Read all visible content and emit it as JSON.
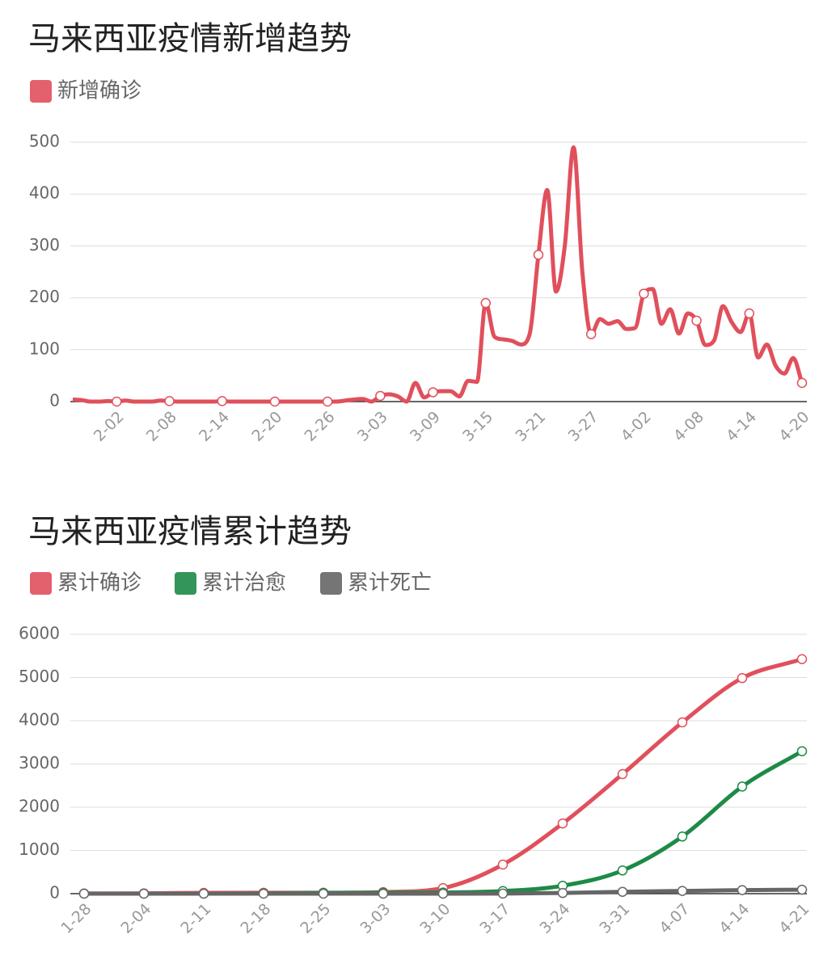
{
  "chart_data": [
    {
      "type": "line",
      "title": "马来西亚疫情新增趋势",
      "categories": [
        null,
        null,
        null,
        null,
        null,
        "2-02",
        null,
        null,
        null,
        null,
        null,
        "2-08",
        null,
        null,
        null,
        null,
        null,
        "2-14",
        null,
        null,
        null,
        null,
        null,
        "2-20",
        null,
        null,
        null,
        null,
        null,
        "2-26",
        null,
        null,
        null,
        null,
        null,
        "3-03",
        null,
        null,
        null,
        null,
        null,
        "3-09",
        null,
        null,
        null,
        null,
        null,
        "3-15",
        null,
        null,
        null,
        null,
        null,
        "3-21",
        null,
        null,
        null,
        null,
        null,
        "3-27",
        null,
        null,
        null,
        null,
        null,
        "4-02",
        null,
        null,
        null,
        null,
        null,
        "4-08",
        null,
        null,
        null,
        null,
        null,
        "4-14",
        null,
        null,
        null,
        null,
        null,
        "4-20"
      ],
      "series": [
        {
          "name": "新增确诊",
          "color": "#e0505c",
          "values": [
            4,
            3,
            0,
            0,
            1,
            0,
            2,
            0,
            0,
            0,
            2,
            1,
            0,
            0,
            0,
            0,
            0,
            1,
            0,
            0,
            0,
            0,
            0,
            0,
            0,
            0,
            0,
            0,
            0,
            0,
            0,
            2,
            4,
            5,
            0,
            11,
            14,
            10,
            0,
            36,
            8,
            18,
            20,
            20,
            10,
            40,
            38,
            190,
            125,
            120,
            117,
            110,
            130,
            283,
            408,
            212,
            300,
            490,
            250,
            130,
            159,
            150,
            155,
            140,
            142,
            208,
            217,
            150,
            178,
            131,
            170,
            156,
            109,
            118,
            184,
            153,
            134,
            170,
            85,
            110,
            69,
            54,
            84,
            36
          ]
        }
      ],
      "ylim": [
        0,
        500
      ],
      "yticks": [
        0,
        100,
        200,
        300,
        400,
        500
      ],
      "grid": true
    },
    {
      "type": "line",
      "title": "马来西亚疫情累计趋势",
      "categories": [
        "1-28",
        "2-04",
        "2-11",
        "2-18",
        "2-25",
        "3-03",
        "3-10",
        "3-17",
        "3-24",
        "3-31",
        "4-07",
        "4-14",
        "4-21"
      ],
      "series": [
        {
          "name": "累计确诊",
          "color": "#e0505c",
          "values": [
            4,
            8,
            18,
            22,
            22,
            36,
            129,
            673,
            1624,
            2766,
            3963,
            4987,
            5425
          ]
        },
        {
          "name": "累计治愈",
          "color": "#1e8a47",
          "values": [
            0,
            0,
            1,
            7,
            18,
            22,
            26,
            60,
            183,
            537,
            1322,
            2478,
            3295
          ]
        },
        {
          "name": "累计死亡",
          "color": "#666666",
          "values": [
            0,
            0,
            0,
            0,
            0,
            0,
            0,
            2,
            16,
            43,
            63,
            82,
            92
          ]
        }
      ],
      "ylim": [
        0,
        6000
      ],
      "yticks": [
        0,
        1000,
        2000,
        3000,
        4000,
        5000,
        6000
      ],
      "grid": true
    }
  ]
}
